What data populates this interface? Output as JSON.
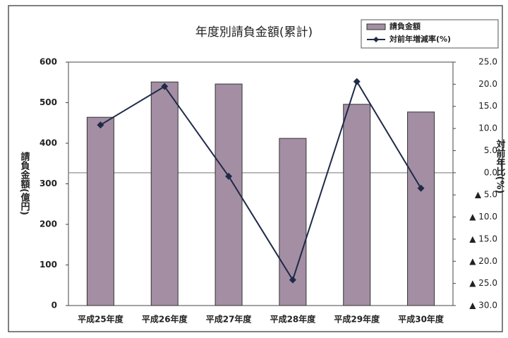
{
  "chart_data": {
    "type": "bar",
    "title": "年度別請負金額(累計)",
    "y_label": "請負金額(億円)",
    "y2_label": "対前年比(%)",
    "categories": [
      "平成25年度",
      "平成26年度",
      "平成27年度",
      "平成28年度",
      "平成29年度",
      "平成30年度"
    ],
    "series": [
      {
        "name": "請負金額",
        "type": "bar",
        "color": "#a38ea3",
        "values": [
          464,
          551,
          546,
          412,
          496,
          477
        ]
      },
      {
        "name": "対前年増減率(%)",
        "type": "line",
        "axis": "y2",
        "color": "#1f2a48",
        "values": [
          10.8,
          19.5,
          -0.8,
          -24.2,
          20.6,
          -3.5
        ]
      }
    ],
    "ylim": [
      0,
      600
    ],
    "yticks": [
      0,
      100,
      200,
      300,
      400,
      500,
      600
    ],
    "y2lim": [
      -30,
      25
    ],
    "y2ticks": [
      {
        "value": 25,
        "label": "25.0"
      },
      {
        "value": 20,
        "label": "20.0"
      },
      {
        "value": 15,
        "label": "15.0"
      },
      {
        "value": 10,
        "label": "10.0"
      },
      {
        "value": 5,
        "label": "5.0"
      },
      {
        "value": 0,
        "label": "0.0"
      },
      {
        "value": -5,
        "label": "▲ 5.0"
      },
      {
        "value": -10,
        "label": "▲ 10.0"
      },
      {
        "value": -15,
        "label": "▲ 15.0"
      },
      {
        "value": -20,
        "label": "▲ 20.0"
      },
      {
        "value": -25,
        "label": "▲ 25.0"
      },
      {
        "value": -30,
        "label": "▲ 30.0"
      }
    ],
    "y2_zero_line": true,
    "legend": "top-right"
  }
}
